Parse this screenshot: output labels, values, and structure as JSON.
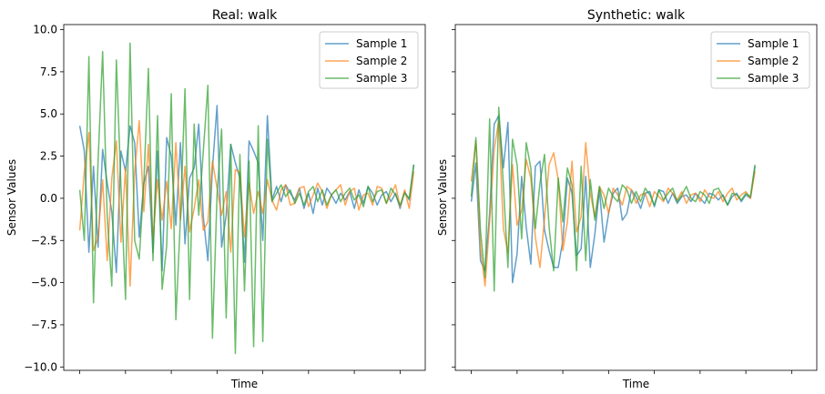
{
  "chart_data": [
    {
      "type": "line",
      "title": "Real: walk",
      "xlabel": "Time",
      "ylabel": "Sensor Values",
      "ylim": [
        -10.2,
        10.3
      ],
      "yticks": [
        10.0,
        7.5,
        5.0,
        2.5,
        0.0,
        -2.5,
        -5.0,
        -7.5,
        -10.0
      ],
      "ytick_labels": [
        "10.0",
        "7.5",
        "5.0",
        "2.5",
        "0.0",
        "−2.5",
        "−5.0",
        "−7.5",
        "−10.0"
      ],
      "show_ytick_labels": true,
      "xlim": [
        -3.5,
        75.5
      ],
      "xticks": [
        0,
        10,
        20,
        30,
        40,
        50,
        60,
        70
      ],
      "legend_position": "top-right",
      "grid": false,
      "series": [
        {
          "name": "Sample 1",
          "color": "#1f77b4",
          "values": [
            4.3,
            2.8,
            -3.2,
            1.9,
            -2.9,
            2.9,
            0.9,
            -0.8,
            -4.4,
            2.8,
            1.6,
            4.3,
            3.3,
            -2.3,
            0.9,
            1.9,
            -3.2,
            2.8,
            -4.3,
            3.6,
            2.5,
            -1.6,
            3.3,
            -2.7,
            1.2,
            1.8,
            4.4,
            -1.1,
            -3.7,
            1.8,
            5.5,
            -2.9,
            -1.0,
            3.2,
            2.1,
            1.2,
            -3.8,
            3.4,
            2.8,
            2.1,
            -2.5,
            4.9,
            -0.1,
            0.7,
            -0.2,
            0.8,
            0.3,
            -0.1,
            0.6,
            -0.6,
            0.3,
            -0.9,
            0.6,
            -0.4,
            0.6,
            0.2,
            -0.3,
            0.3,
            -0.1,
            0.4,
            -0.6,
            0.5,
            -0.3,
            0.7,
            0.3,
            -0.4,
            0.2,
            0.4,
            -0.2,
            0.3,
            -0.6,
            0.4,
            -0.1,
            2.0
          ]
        },
        {
          "name": "Sample 2",
          "color": "#ff7f0e",
          "values": [
            -1.9,
            1.6,
            3.9,
            -3.1,
            -2.3,
            1.1,
            -3.7,
            1.2,
            3.4,
            -2.6,
            1.8,
            -5.2,
            1.6,
            4.6,
            -0.8,
            3.2,
            -2.4,
            1.1,
            -1.3,
            1.0,
            -1.8,
            3.3,
            -1.3,
            1.9,
            -2.0,
            -0.6,
            1.1,
            -1.9,
            -1.4,
            2.2,
            0.6,
            -1.0,
            0.4,
            -3.2,
            1.7,
            1.5,
            -2.3,
            0.9,
            -0.9,
            0.4,
            -0.9,
            1.1,
            -0.1,
            -0.7,
            0.5,
            0.8,
            -0.4,
            -0.3,
            0.6,
            0.7,
            -0.5,
            0.2,
            0.9,
            0.4,
            -0.6,
            0.2,
            0.5,
            0.8,
            -0.4,
            0.4,
            0.6,
            -0.7,
            0.2,
            0.3,
            -0.4,
            0.7,
            0.6,
            -0.3,
            0.2,
            0.8,
            -0.5,
            0.5,
            -0.6,
            1.6
          ]
        },
        {
          "name": "Sample 3",
          "color": "#2ca02c",
          "values": [
            0.5,
            -2.5,
            8.4,
            -6.2,
            2.2,
            8.7,
            -1.1,
            -5.2,
            8.2,
            0.7,
            -6.0,
            9.2,
            -2.5,
            -3.6,
            0.9,
            7.7,
            -3.7,
            4.9,
            -5.4,
            -2.8,
            6.2,
            -7.2,
            -1.2,
            6.5,
            -6.0,
            4.4,
            -1.0,
            2.8,
            6.7,
            -8.3,
            0.2,
            4.1,
            -7.1,
            3.2,
            -9.2,
            2.6,
            -5.5,
            2.2,
            -8.8,
            4.3,
            -8.5,
            3.5,
            -0.2,
            0.3,
            0.8,
            0.1,
            0.5,
            -0.3,
            0.3,
            -0.4,
            0.4,
            0.7,
            -0.2,
            0.5,
            -0.4,
            0.2,
            0.5,
            -0.2,
            0.3,
            0.6,
            -0.1,
            0.2,
            -0.5,
            0.7,
            -0.2,
            0.4,
            0.5,
            -0.3,
            0.6,
            0.2,
            -0.4,
            0.3,
            0.0,
            2.0
          ]
        }
      ]
    },
    {
      "type": "line",
      "title": "Synthetic: walk",
      "xlabel": "Time",
      "ylabel": "Sensor Values",
      "ylim": [
        -10.2,
        10.3
      ],
      "yticks": [
        10.0,
        7.5,
        5.0,
        2.5,
        0.0,
        -2.5,
        -5.0,
        -7.5,
        -10.0
      ],
      "show_ytick_labels": false,
      "xlim": [
        -3.5,
        75.5
      ],
      "xticks": [
        0,
        10,
        20,
        30,
        40,
        50,
        60,
        70
      ],
      "legend_position": "top-right",
      "grid": false,
      "series": [
        {
          "name": "Sample 1",
          "color": "#1f77b4",
          "values": [
            -0.2,
            2.1,
            -3.7,
            -4.3,
            -0.9,
            4.4,
            4.9,
            1.8,
            4.5,
            -5.0,
            -3.3,
            1.3,
            -1.7,
            -3.9,
            1.9,
            2.2,
            -1.9,
            -3.1,
            -4.1,
            -4.1,
            -2.5,
            1.2,
            0.3,
            -3.4,
            -3.0,
            1.3,
            -4.1,
            -2.1,
            0.5,
            -2.6,
            -0.9,
            0.3,
            0.6,
            -1.3,
            -0.9,
            0.5,
            0.1,
            -0.6,
            0.3,
            0.4,
            -0.5,
            0.5,
            0.4,
            -0.3,
            0.3,
            -0.3,
            0.1,
            0.2,
            -0.2,
            0.3,
            0.0,
            -0.3,
            0.3,
            0.2,
            -0.1,
            0.2,
            -0.4,
            0.1,
            0.3,
            -0.2,
            0.2,
            0.0,
            1.9
          ]
        },
        {
          "name": "Sample 2",
          "color": "#ff7f0e",
          "values": [
            1.0,
            3.4,
            -2.9,
            -5.2,
            -1.4,
            2.9,
            4.6,
            -1.8,
            -3.2,
            2.0,
            -1.6,
            -0.7,
            2.3,
            1.2,
            -2.3,
            -4.1,
            -1.2,
            2.0,
            2.7,
            1.1,
            -3.1,
            -1.4,
            2.2,
            -2.0,
            -1.1,
            3.3,
            0.3,
            -1.1,
            0.7,
            0.2,
            -0.9,
            0.6,
            0.2,
            -0.4,
            0.7,
            0.5,
            -0.3,
            0.2,
            0.3,
            -0.5,
            0.4,
            0.1,
            -0.2,
            0.6,
            0.3,
            -0.1,
            0.4,
            -0.3,
            0.2,
            0.3,
            -0.2,
            0.5,
            0.1,
            0.0,
            0.4,
            -0.2,
            0.3,
            0.6,
            -0.1,
            0.2,
            0.4,
            0.0,
            1.6
          ]
        },
        {
          "name": "Sample 3",
          "color": "#2ca02c",
          "values": [
            0.1,
            3.6,
            -1.9,
            -4.7,
            4.7,
            -5.5,
            5.4,
            0.8,
            -4.1,
            3.5,
            2.0,
            -2.4,
            3.3,
            1.8,
            -1.8,
            0.9,
            2.6,
            -1.7,
            -4.3,
            1.2,
            -1.4,
            1.8,
            0.8,
            -4.3,
            1.9,
            -3.7,
            1.1,
            -1.3,
            0.7,
            -0.6,
            0.6,
            0.1,
            -0.2,
            0.8,
            0.5,
            -0.3,
            0.4,
            -0.2,
            0.6,
            0.2,
            -0.4,
            0.5,
            -0.1,
            0.3,
            0.6,
            -0.2,
            0.2,
            0.7,
            0.0,
            -0.2,
            0.4,
            0.2,
            -0.3,
            0.5,
            0.6,
            0.1,
            -0.4,
            0.3,
            0.2,
            -0.1,
            0.3,
            0.1,
            2.0
          ]
        }
      ]
    }
  ]
}
